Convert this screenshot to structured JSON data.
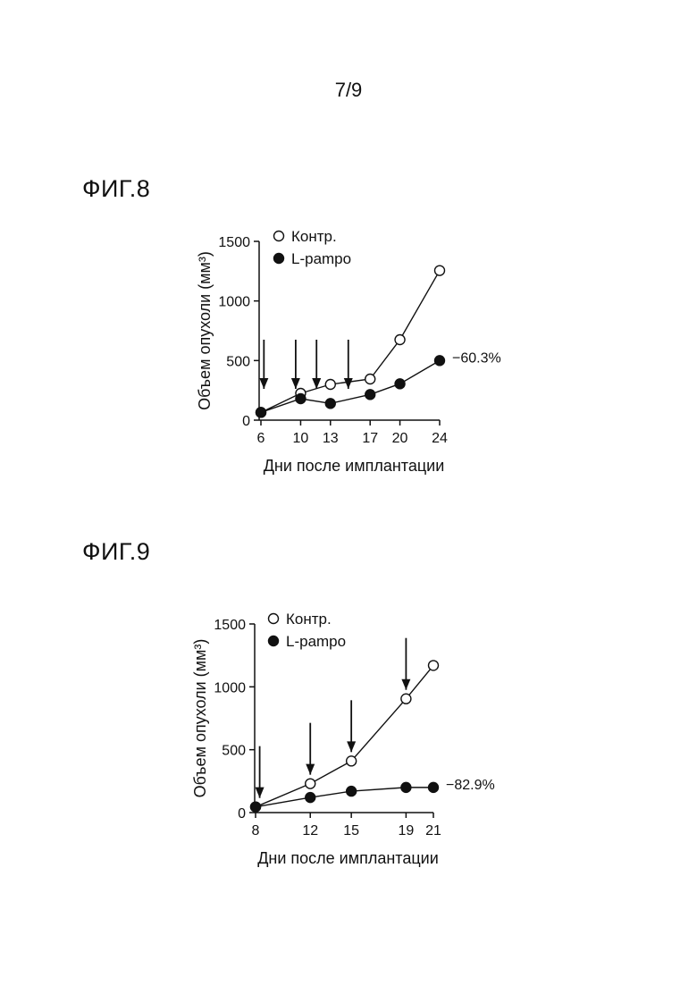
{
  "page_number": "7/9",
  "chart_data": [
    {
      "figure_label": "ФИГ.8",
      "type": "line",
      "xlabel": "Дни после имплантации",
      "ylabel": "Объем опухоли (мм³)",
      "ylim": [
        0,
        1500
      ],
      "yticks": [
        0,
        500,
        1000,
        1500
      ],
      "xticks": [
        6,
        10,
        13,
        17,
        20,
        24
      ],
      "x": [
        6,
        10,
        13,
        17,
        20,
        24
      ],
      "series": [
        {
          "name": "Контр.",
          "marker": "open-circle",
          "values": [
            65,
            225,
            300,
            345,
            675,
            1255
          ]
        },
        {
          "name": "L-pampo",
          "marker": "filled-circle",
          "values": [
            65,
            180,
            140,
            215,
            305,
            500
          ]
        }
      ],
      "arrows_x": [
        6.3,
        9.5,
        11.6,
        14.8
      ],
      "annotation": {
        "text": "−60.3%",
        "series": "L-pampo"
      },
      "legend": "top-left",
      "grid": false
    },
    {
      "figure_label": "ФИГ.9",
      "type": "line",
      "xlabel": "Дни после имплантации",
      "ylabel": "Объем опухоли (мм³)",
      "ylim": [
        0,
        1500
      ],
      "yticks": [
        0,
        500,
        1000,
        1500
      ],
      "xticks": [
        8,
        12,
        15,
        19,
        21
      ],
      "x": [
        8,
        12,
        15,
        19,
        21
      ],
      "series": [
        {
          "name": "Контр.",
          "marker": "open-circle",
          "values": [
            45,
            230,
            410,
            905,
            1170
          ]
        },
        {
          "name": "L-pampo",
          "marker": "filled-circle",
          "values": [
            45,
            120,
            170,
            200,
            200
          ]
        }
      ],
      "arrows_x": [
        8.3,
        12,
        15,
        19
      ],
      "annotation": {
        "text": "−82.9%",
        "series": "L-pampo"
      },
      "legend": "top-left",
      "grid": false
    }
  ]
}
